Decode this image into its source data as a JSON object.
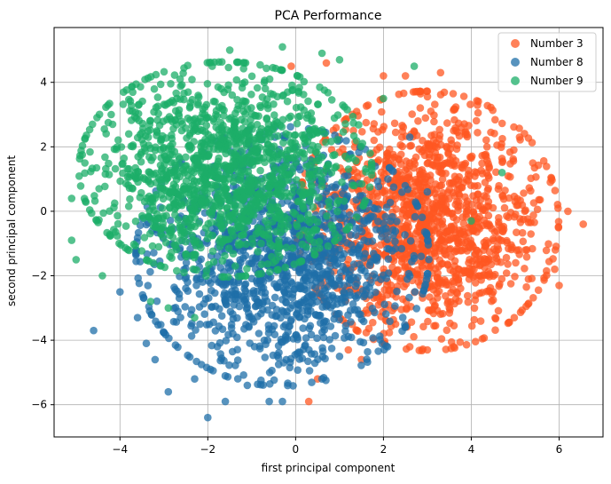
{
  "chart_data": {
    "type": "scatter",
    "title": "PCA Performance",
    "xlabel": "first principal component",
    "ylabel": "second principal component",
    "xlim": [
      -5.5,
      7.0
    ],
    "ylim": [
      -7.0,
      5.7
    ],
    "xticks": [
      -4,
      -2,
      0,
      2,
      4,
      6
    ],
    "yticks": [
      -6,
      -4,
      -2,
      0,
      2,
      4
    ],
    "grid": true,
    "legend_position": "top-right",
    "point_opacity": 0.75,
    "series": [
      {
        "name": "Number 3",
        "color": "#ff5722",
        "cluster": {
          "center": [
            3.0,
            -0.3
          ],
          "spread": [
            1.3,
            1.75
          ],
          "count": 1400
        },
        "points": [
          [
            6.55,
            -0.4
          ],
          [
            6.2,
            0.0
          ],
          [
            6.0,
            -2.3
          ],
          [
            5.9,
            -1.8
          ],
          [
            2.0,
            4.2
          ],
          [
            2.5,
            4.2
          ],
          [
            3.3,
            4.3
          ],
          [
            0.3,
            -5.9
          ],
          [
            0.5,
            -5.2
          ],
          [
            1.5,
            -4.6
          ],
          [
            2.6,
            -4.2
          ],
          [
            3.6,
            -4.2
          ],
          [
            4.5,
            -2.5
          ],
          [
            5.1,
            2.3
          ],
          [
            5.4,
            1.5
          ],
          [
            5.8,
            0.9
          ],
          [
            -0.1,
            4.5
          ],
          [
            0.7,
            4.6
          ],
          [
            1.2,
            -4.3
          ],
          [
            3.0,
            -4.3
          ]
        ]
      },
      {
        "name": "Number 8",
        "color": "#1f6fa8",
        "cluster": {
          "center": [
            -0.3,
            -1.4
          ],
          "spread": [
            1.45,
            1.75
          ],
          "count": 1400
        },
        "points": [
          [
            -4.6,
            -3.7
          ],
          [
            -2.0,
            -6.4
          ],
          [
            -0.3,
            -5.9
          ],
          [
            -0.6,
            -5.9
          ],
          [
            -1.6,
            -5.9
          ],
          [
            -2.9,
            -5.6
          ],
          [
            -3.6,
            -3.3
          ],
          [
            -4.0,
            -2.5
          ],
          [
            -3.4,
            -4.1
          ],
          [
            0.6,
            -5.2
          ],
          [
            1.0,
            -4.5
          ],
          [
            1.7,
            -2.6
          ],
          [
            2.6,
            2.3
          ],
          [
            2.1,
            1.0
          ],
          [
            3.0,
            0.6
          ],
          [
            -2.3,
            -5.2
          ],
          [
            -1.1,
            -5.4
          ],
          [
            -3.2,
            -4.6
          ]
        ]
      },
      {
        "name": "Number 9",
        "color": "#1cae68",
        "cluster": {
          "center": [
            -1.6,
            1.3
          ],
          "spread": [
            1.45,
            1.45
          ],
          "count": 1400
        },
        "points": [
          [
            -5.1,
            -0.9
          ],
          [
            -5.1,
            0.4
          ],
          [
            -5.0,
            -1.5
          ],
          [
            -4.8,
            1.5
          ],
          [
            -3.8,
            2.4
          ],
          [
            -4.4,
            -2.0
          ],
          [
            -3.3,
            -2.8
          ],
          [
            -2.3,
            -3.3
          ],
          [
            -1.5,
            5.0
          ],
          [
            -0.3,
            5.1
          ],
          [
            0.6,
            4.9
          ],
          [
            1.0,
            4.7
          ],
          [
            2.7,
            4.5
          ],
          [
            4.7,
            1.2
          ],
          [
            4.0,
            -0.3
          ],
          [
            -1.9,
            4.5
          ],
          [
            -4.2,
            3.0
          ],
          [
            -2.9,
            -3.0
          ],
          [
            2.0,
            3.5
          ]
        ]
      }
    ]
  }
}
